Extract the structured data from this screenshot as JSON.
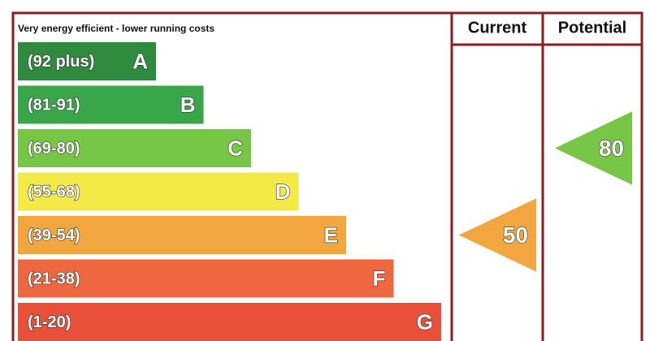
{
  "header": {
    "title": "Very energy efficient - lower running costs",
    "columns": [
      "Current",
      "Potential"
    ]
  },
  "bands": [
    {
      "range": "(92 plus)",
      "letter": "A",
      "color": "#2f8a3e"
    },
    {
      "range": "(81-91)",
      "letter": "B",
      "color": "#3aa64a"
    },
    {
      "range": "(69-80)",
      "letter": "C",
      "color": "#78c645"
    },
    {
      "range": "(55-68)",
      "letter": "D",
      "color": "#f3ea48"
    },
    {
      "range": "(39-54)",
      "letter": "E",
      "color": "#f1a640"
    },
    {
      "range": "(21-38)",
      "letter": "F",
      "color": "#ee673e"
    },
    {
      "range": "(1-20)",
      "letter": "G",
      "color": "#e8503a"
    }
  ],
  "ratings": {
    "current": 50,
    "potential": 80
  }
}
